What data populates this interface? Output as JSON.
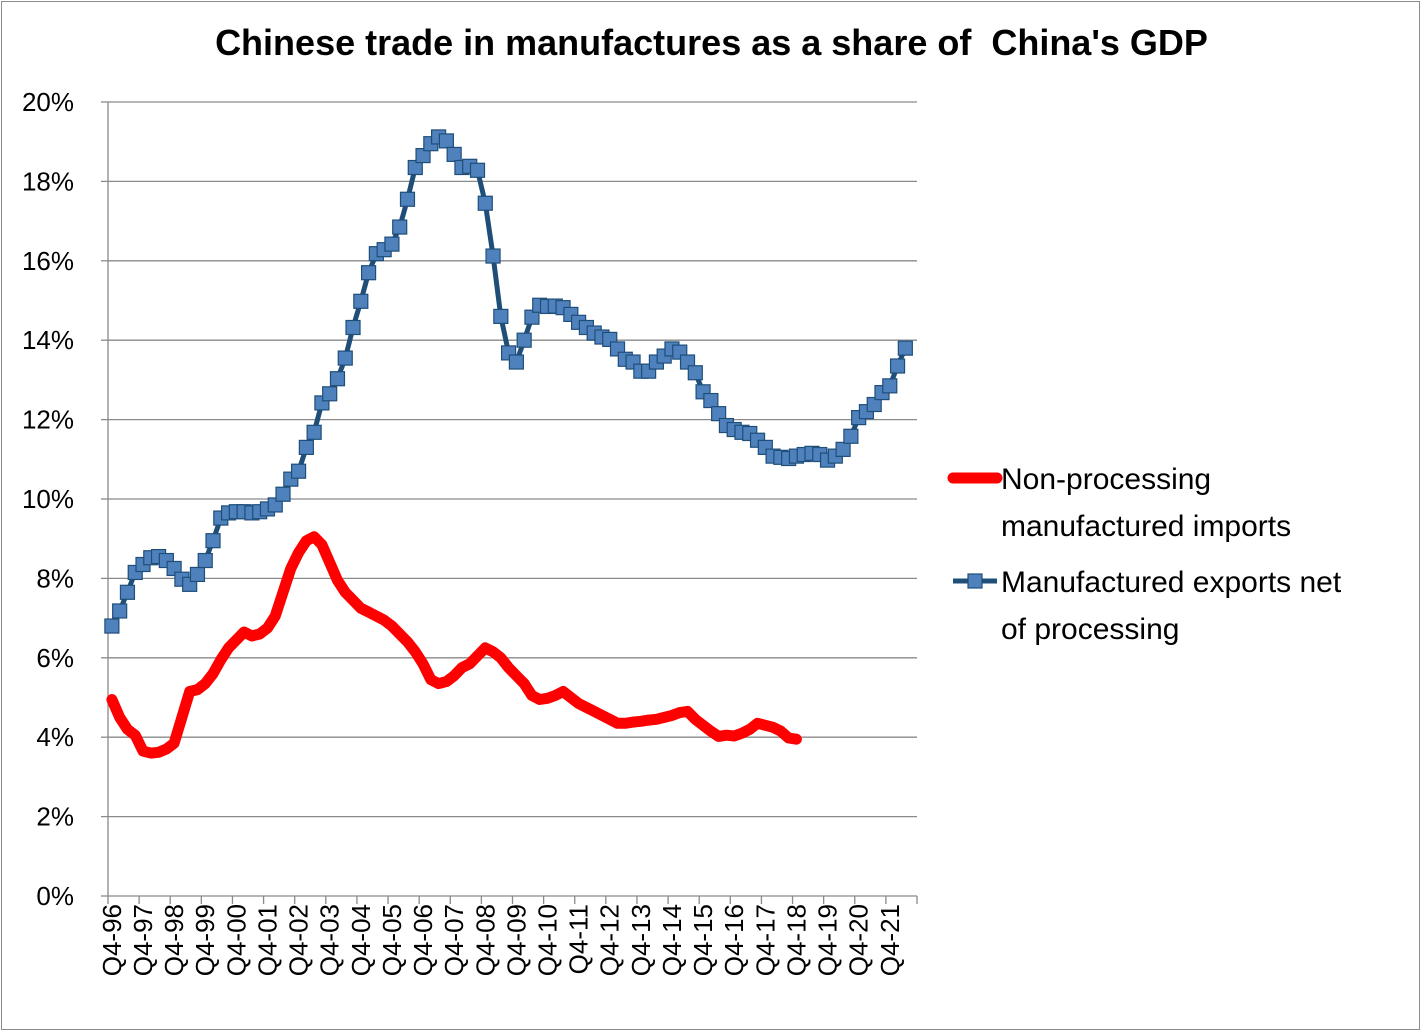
{
  "chart_data": {
    "type": "line",
    "title": "Chinese trade in manufactures as a share of  China's GDP",
    "xlabel": "",
    "ylabel": "",
    "ylim": [
      0,
      0.2
    ],
    "grid": true,
    "legend_position": "right",
    "y_ticks": [
      "0%",
      "2%",
      "4%",
      "6%",
      "8%",
      "10%",
      "12%",
      "14%",
      "16%",
      "18%",
      "20%"
    ],
    "x_tick_labels": [
      "Q4-96",
      "Q4-97",
      "Q4-98",
      "Q4-99",
      "Q4-00",
      "Q4-01",
      "Q4-02",
      "Q4-03",
      "Q4-04",
      "Q4-05",
      "Q4-06",
      "Q4-07",
      "Q4-08",
      "Q4-09",
      "Q4-10",
      "Q4-11",
      "Q4-12",
      "Q4-13",
      "Q4-14",
      "Q4-15",
      "Q4-16",
      "Q4-17",
      "Q4-18",
      "Q4-19",
      "Q4-20",
      "Q4-21"
    ],
    "series": [
      {
        "name": "Non-processing manufactured imports",
        "legend_lines": [
          "Non-processing",
          "manufactured imports"
        ],
        "color": "#ff0000",
        "marker": "none",
        "start": "Q4-96",
        "values": [
          0.0495,
          0.045,
          0.042,
          0.0405,
          0.0365,
          0.036,
          0.0362,
          0.037,
          0.0385,
          0.045,
          0.0515,
          0.052,
          0.0535,
          0.056,
          0.0595,
          0.0625,
          0.0645,
          0.0665,
          0.0655,
          0.066,
          0.0675,
          0.0705,
          0.0765,
          0.0825,
          0.0865,
          0.0895,
          0.0905,
          0.0885,
          0.084,
          0.0795,
          0.0765,
          0.0745,
          0.0725,
          0.0715,
          0.0705,
          0.0695,
          0.068,
          0.066,
          0.064,
          0.0615,
          0.0585,
          0.0545,
          0.0535,
          0.054,
          0.0555,
          0.0575,
          0.0585,
          0.0605,
          0.0625,
          0.0615,
          0.06,
          0.0575,
          0.0555,
          0.0535,
          0.0505,
          0.0495,
          0.0498,
          0.0505,
          0.0515,
          0.05,
          0.0485,
          0.0475,
          0.0465,
          0.0455,
          0.0445,
          0.0435,
          0.0435,
          0.0438,
          0.044,
          0.0443,
          0.0445,
          0.045,
          0.0455,
          0.0462,
          0.0465,
          0.0445,
          0.043,
          0.0415,
          0.0402,
          0.0405,
          0.0403,
          0.041,
          0.042,
          0.0435,
          0.043,
          0.0425,
          0.0415,
          0.0398,
          0.0395
        ]
      },
      {
        "name": "Manufactured exports net of processing",
        "legend_lines": [
          "Manufactured exports net",
          "of processing"
        ],
        "color": "#1f4e79",
        "marker_fill": "#4f81bd",
        "marker": "square",
        "start": "Q4-96",
        "values": [
          0.068,
          0.0718,
          0.0765,
          0.0815,
          0.0835,
          0.0852,
          0.0855,
          0.0845,
          0.0825,
          0.0798,
          0.0785,
          0.081,
          0.0845,
          0.0895,
          0.0952,
          0.0965,
          0.0968,
          0.0968,
          0.0965,
          0.0968,
          0.0975,
          0.0985,
          0.1012,
          0.105,
          0.107,
          0.113,
          0.1168,
          0.1242,
          0.1265,
          0.1303,
          0.1355,
          0.1432,
          0.1498,
          0.157,
          0.1618,
          0.1628,
          0.1642,
          0.1685,
          0.1755,
          0.1835,
          0.1865,
          0.1895,
          0.1912,
          0.1902,
          0.1868,
          0.1835,
          0.1838,
          0.1828,
          0.1745,
          0.1612,
          0.146,
          0.1368,
          0.1345,
          0.14,
          0.1458,
          0.1488,
          0.1485,
          0.1486,
          0.1482,
          0.1465,
          0.1445,
          0.1432,
          0.1418,
          0.1408,
          0.1402,
          0.1378,
          0.1352,
          0.1345,
          0.1322,
          0.1322,
          0.1345,
          0.136,
          0.1378,
          0.137,
          0.1345,
          0.1318,
          0.127,
          0.1248,
          0.1215,
          0.1185,
          0.1175,
          0.1168,
          0.1165,
          0.1148,
          0.113,
          0.1108,
          0.1105,
          0.1102,
          0.1108,
          0.1112,
          0.1115,
          0.1112,
          0.1098,
          0.1108,
          0.1125,
          0.1158,
          0.1205,
          0.122,
          0.1238,
          0.1268,
          0.1285,
          0.1335,
          0.138
        ]
      }
    ]
  }
}
